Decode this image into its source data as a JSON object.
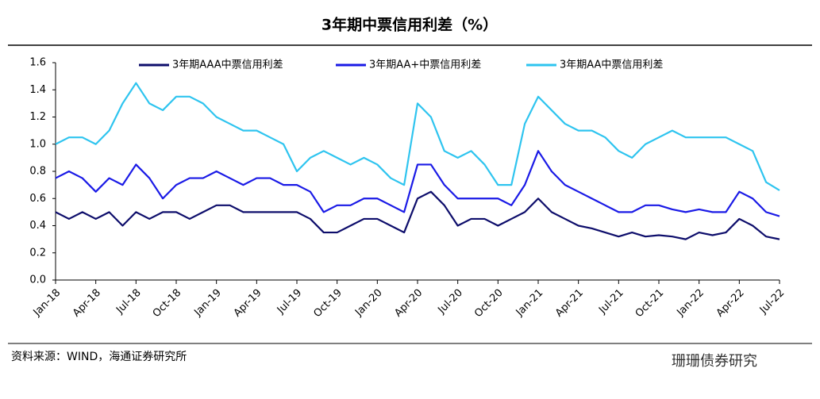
{
  "chart_data": {
    "type": "line",
    "title": "3年期中票信用利差（%）",
    "source": "资料来源：WIND，海通证券研究所",
    "watermark": "珊珊债券研究",
    "categories": [
      "Jan-18",
      null,
      null,
      "Apr-18",
      null,
      null,
      "Jul-18",
      null,
      null,
      "Oct-18",
      null,
      null,
      "Jan-19",
      null,
      null,
      "Apr-19",
      null,
      null,
      "Jul-19",
      null,
      null,
      "Oct-19",
      null,
      null,
      "Jan-20",
      null,
      null,
      "Apr-20",
      null,
      null,
      "Jul-20",
      null,
      null,
      "Oct-20",
      null,
      null,
      "Jan-21",
      null,
      null,
      "Apr-21",
      null,
      null,
      "Jul-21",
      null,
      null,
      "Oct-21",
      null,
      null,
      "Jan-22",
      null,
      null,
      "Apr-22",
      null,
      null,
      "Jul-22"
    ],
    "series": [
      {
        "name": "3年期AAA中票信用利差",
        "color": "#0d0d6b",
        "values": [
          0.5,
          0.45,
          0.5,
          0.45,
          0.5,
          0.4,
          0.5,
          0.45,
          0.5,
          0.5,
          0.45,
          0.5,
          0.55,
          0.55,
          0.5,
          0.5,
          0.5,
          0.5,
          0.5,
          0.45,
          0.35,
          0.35,
          0.4,
          0.45,
          0.45,
          0.4,
          0.35,
          0.6,
          0.65,
          0.55,
          0.4,
          0.45,
          0.45,
          0.4,
          0.45,
          0.5,
          0.6,
          0.5,
          0.45,
          0.4,
          0.38,
          0.35,
          0.32,
          0.35,
          0.32,
          0.33,
          0.32,
          0.3,
          0.35,
          0.33,
          0.35,
          0.45,
          0.4,
          0.32,
          0.3
        ]
      },
      {
        "name": "3年期AA+中票信用利差",
        "color": "#1a1ae6",
        "values": [
          0.75,
          0.8,
          0.75,
          0.65,
          0.75,
          0.7,
          0.85,
          0.75,
          0.6,
          0.7,
          0.75,
          0.75,
          0.8,
          0.75,
          0.7,
          0.75,
          0.75,
          0.7,
          0.7,
          0.65,
          0.5,
          0.55,
          0.55,
          0.6,
          0.6,
          0.55,
          0.5,
          0.85,
          0.85,
          0.7,
          0.6,
          0.6,
          0.6,
          0.6,
          0.55,
          0.7,
          0.95,
          0.8,
          0.7,
          0.65,
          0.6,
          0.55,
          0.5,
          0.5,
          0.55,
          0.55,
          0.52,
          0.5,
          0.52,
          0.5,
          0.5,
          0.65,
          0.6,
          0.5,
          0.47
        ]
      },
      {
        "name": "3年期AA中票信用利差",
        "color": "#2ec4ef",
        "values": [
          1.0,
          1.05,
          1.05,
          1.0,
          1.1,
          1.3,
          1.45,
          1.3,
          1.25,
          1.35,
          1.35,
          1.3,
          1.2,
          1.15,
          1.1,
          1.1,
          1.05,
          1.0,
          0.8,
          0.9,
          0.95,
          0.9,
          0.85,
          0.9,
          0.85,
          0.75,
          0.7,
          1.3,
          1.2,
          0.95,
          0.9,
          0.95,
          0.85,
          0.7,
          0.7,
          1.15,
          1.35,
          1.25,
          1.15,
          1.1,
          1.1,
          1.05,
          0.95,
          0.9,
          1.0,
          1.05,
          1.1,
          1.05,
          1.05,
          1.05,
          1.05,
          1.0,
          0.95,
          0.72,
          0.66
        ]
      }
    ],
    "ylim": [
      0,
      1.6
    ],
    "yticks": [
      {
        "value": 0,
        "label": "0.0"
      },
      0.2,
      0.4,
      0.6,
      0.8,
      {
        "value": 1,
        "label": "1.0"
      },
      1.2,
      1.4,
      1.6
    ],
    "grid": false,
    "legend": "top"
  }
}
